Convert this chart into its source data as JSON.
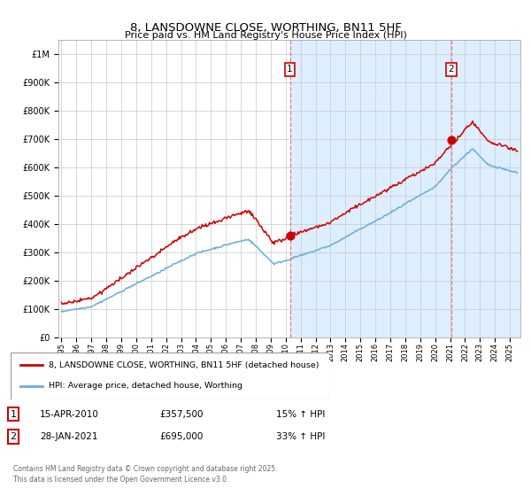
{
  "title": "8, LANSDOWNE CLOSE, WORTHING, BN11 5HF",
  "subtitle": "Price paid vs. HM Land Registry's House Price Index (HPI)",
  "ylabel_ticks": [
    "£0",
    "£100K",
    "£200K",
    "£300K",
    "£400K",
    "£500K",
    "£600K",
    "£700K",
    "£800K",
    "£900K",
    "£1M"
  ],
  "ytick_values": [
    0,
    100000,
    200000,
    300000,
    400000,
    500000,
    600000,
    700000,
    800000,
    900000,
    1000000
  ],
  "ylim": [
    0,
    1050000
  ],
  "x_start_year": 1995,
  "x_end_year": 2025,
  "vline1_year": 2010.28,
  "vline2_year": 2021.08,
  "sale1_price": 357500,
  "sale2_price": 695000,
  "sale1_label": "1",
  "sale1_date": "15-APR-2010",
  "sale1_price_str": "£357,500",
  "sale1_hpi": "15% ↑ HPI",
  "sale2_label": "2",
  "sale2_date": "28-JAN-2021",
  "sale2_price_str": "£695,000",
  "sale2_hpi": "33% ↑ HPI",
  "legend_label1": "8, LANSDOWNE CLOSE, WORTHING, BN11 5HF (detached house)",
  "legend_label2": "HPI: Average price, detached house, Worthing",
  "footer": "Contains HM Land Registry data © Crown copyright and database right 2025.\nThis data is licensed under the Open Government Licence v3.0.",
  "line_color_hpi": "#6baed6",
  "line_color_price": "#cc0000",
  "vline_color": "#e08080",
  "shade_color": "#ddeeff",
  "background_color": "#ffffff",
  "plot_bg_color": "#ffffff",
  "grid_color": "#c8c8c8"
}
